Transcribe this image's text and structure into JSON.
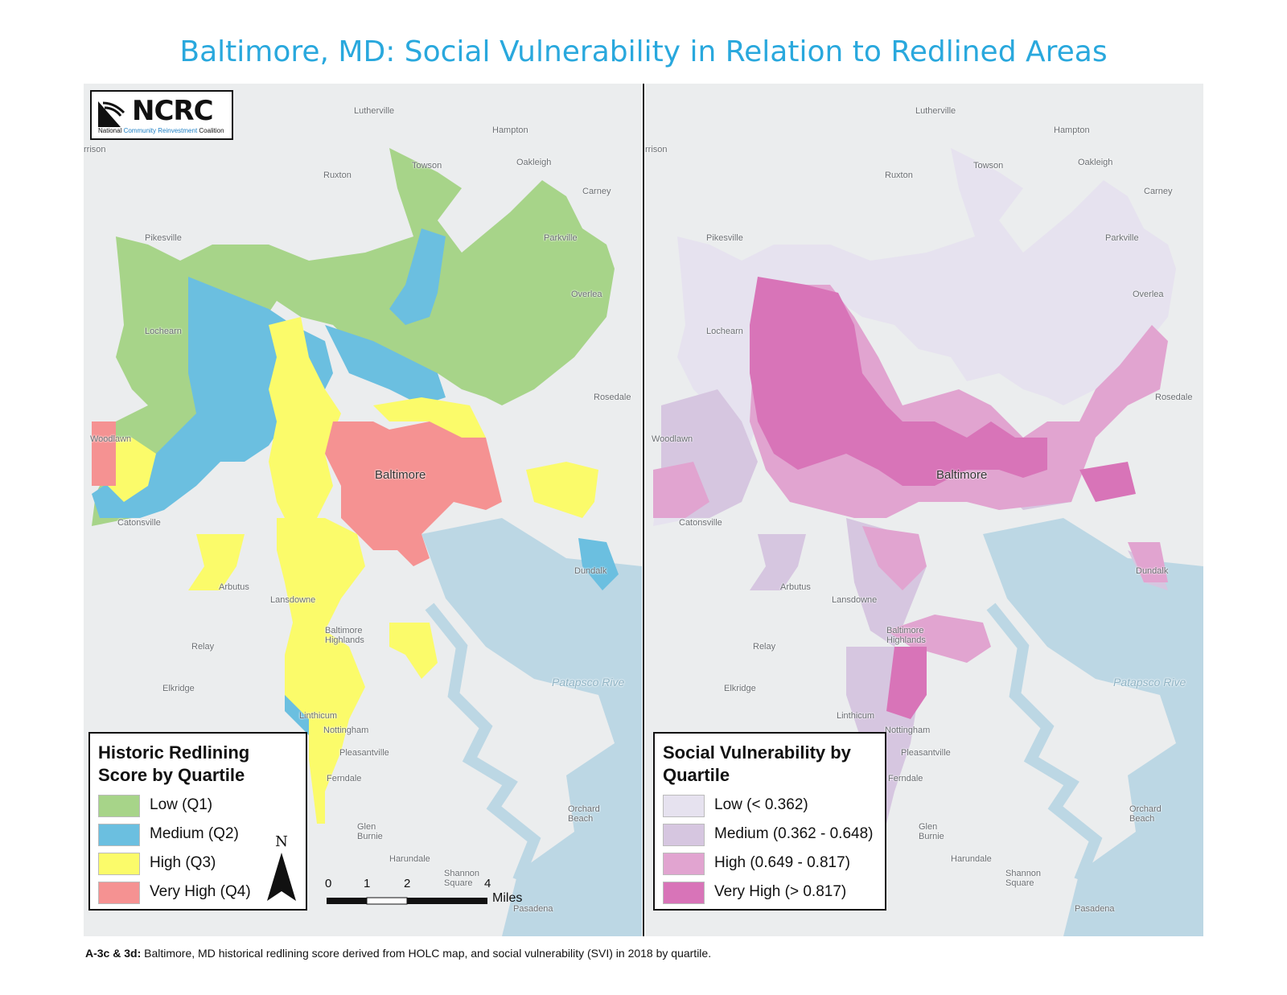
{
  "title": "Baltimore, MD: Social Vulnerability in Relation to Redlined Areas",
  "logo": {
    "name": "NCRC",
    "subtitle_pre": "National ",
    "subtitle_highlight": "Community Reinvestment",
    "subtitle_post": " Coalition"
  },
  "places": [
    {
      "name": "Lutherville",
      "key": "lutherville"
    },
    {
      "name": "Hampton",
      "key": "hampton"
    },
    {
      "name": "rrison",
      "key": "rrison"
    },
    {
      "name": "Towson",
      "key": "towson"
    },
    {
      "name": "Ruxton",
      "key": "ruxton"
    },
    {
      "name": "Oakleigh",
      "key": "oakleigh"
    },
    {
      "name": "Carney",
      "key": "carney"
    },
    {
      "name": "Pikesville",
      "key": "pikesville"
    },
    {
      "name": "Parkville",
      "key": "parkville"
    },
    {
      "name": "Overlea",
      "key": "overlea"
    },
    {
      "name": "Lochearn",
      "key": "lochearn"
    },
    {
      "name": "Rosedale",
      "key": "rosedale"
    },
    {
      "name": "Woodlawn",
      "key": "woodlawn"
    },
    {
      "name": "Baltimore",
      "key": "baltimore",
      "big": true
    },
    {
      "name": "Catonsville",
      "key": "catonsville"
    },
    {
      "name": "Dundalk",
      "key": "dundalk"
    },
    {
      "name": "Arbutus",
      "key": "arbutus"
    },
    {
      "name": "Lansdowne",
      "key": "lansdowne"
    },
    {
      "name": "Baltimore Highlands",
      "key": "highlands"
    },
    {
      "name": "Relay",
      "key": "relay"
    },
    {
      "name": "Elkridge",
      "key": "elkridge"
    },
    {
      "name": "Linthicum",
      "key": "linthicum"
    },
    {
      "name": "Nottingham",
      "key": "nottingham"
    },
    {
      "name": "Pleasantville",
      "key": "pleasantville"
    },
    {
      "name": "Ferndale",
      "key": "ferndale"
    },
    {
      "name": "Glen Burnie",
      "key": "glenburnie"
    },
    {
      "name": "Harundale",
      "key": "harundale"
    },
    {
      "name": "Shannon Square",
      "key": "shannon"
    },
    {
      "name": "Orchard Beach",
      "key": "orchard"
    },
    {
      "name": "Patapsco Rive",
      "key": "patapsco"
    },
    {
      "name": "Pasadena",
      "key": "pasadena"
    }
  ],
  "legend_left": {
    "title_line1": "Historic Redlining",
    "title_line2": "Score by Quartile",
    "items": [
      {
        "label": "Low (Q1)",
        "color": "#a7d489"
      },
      {
        "label": "Medium (Q2)",
        "color": "#6bbfe0"
      },
      {
        "label": "High (Q3)",
        "color": "#fbfb6a"
      },
      {
        "label": "Very High (Q4)",
        "color": "#f59292"
      }
    ]
  },
  "legend_right": {
    "title_line1": "Social Vulnerability by",
    "title_line2": "Quartile",
    "items": [
      {
        "label": "Low (< 0.362)",
        "color": "#e6e2ef"
      },
      {
        "label": "Medium (0.362 - 0.648)",
        "color": "#d6c6e0"
      },
      {
        "label": "High (0.649 - 0.817)",
        "color": "#e1a4d0"
      },
      {
        "label": "Very High (> 0.817)",
        "color": "#d874b8"
      }
    ]
  },
  "north_label": "N",
  "scale": {
    "ticks": [
      "0",
      "1",
      "2",
      "4"
    ],
    "unit": "Miles"
  },
  "caption": {
    "bold": "A-3c & 3d:",
    "text": " Baltimore, MD historical redlining score derived from HOLC map, and social vulnerability (SVI) in 2018 by quartile."
  },
  "colors": {
    "water": "#bcd7e4",
    "land": "#ebedee",
    "title": "#29a8dd"
  }
}
